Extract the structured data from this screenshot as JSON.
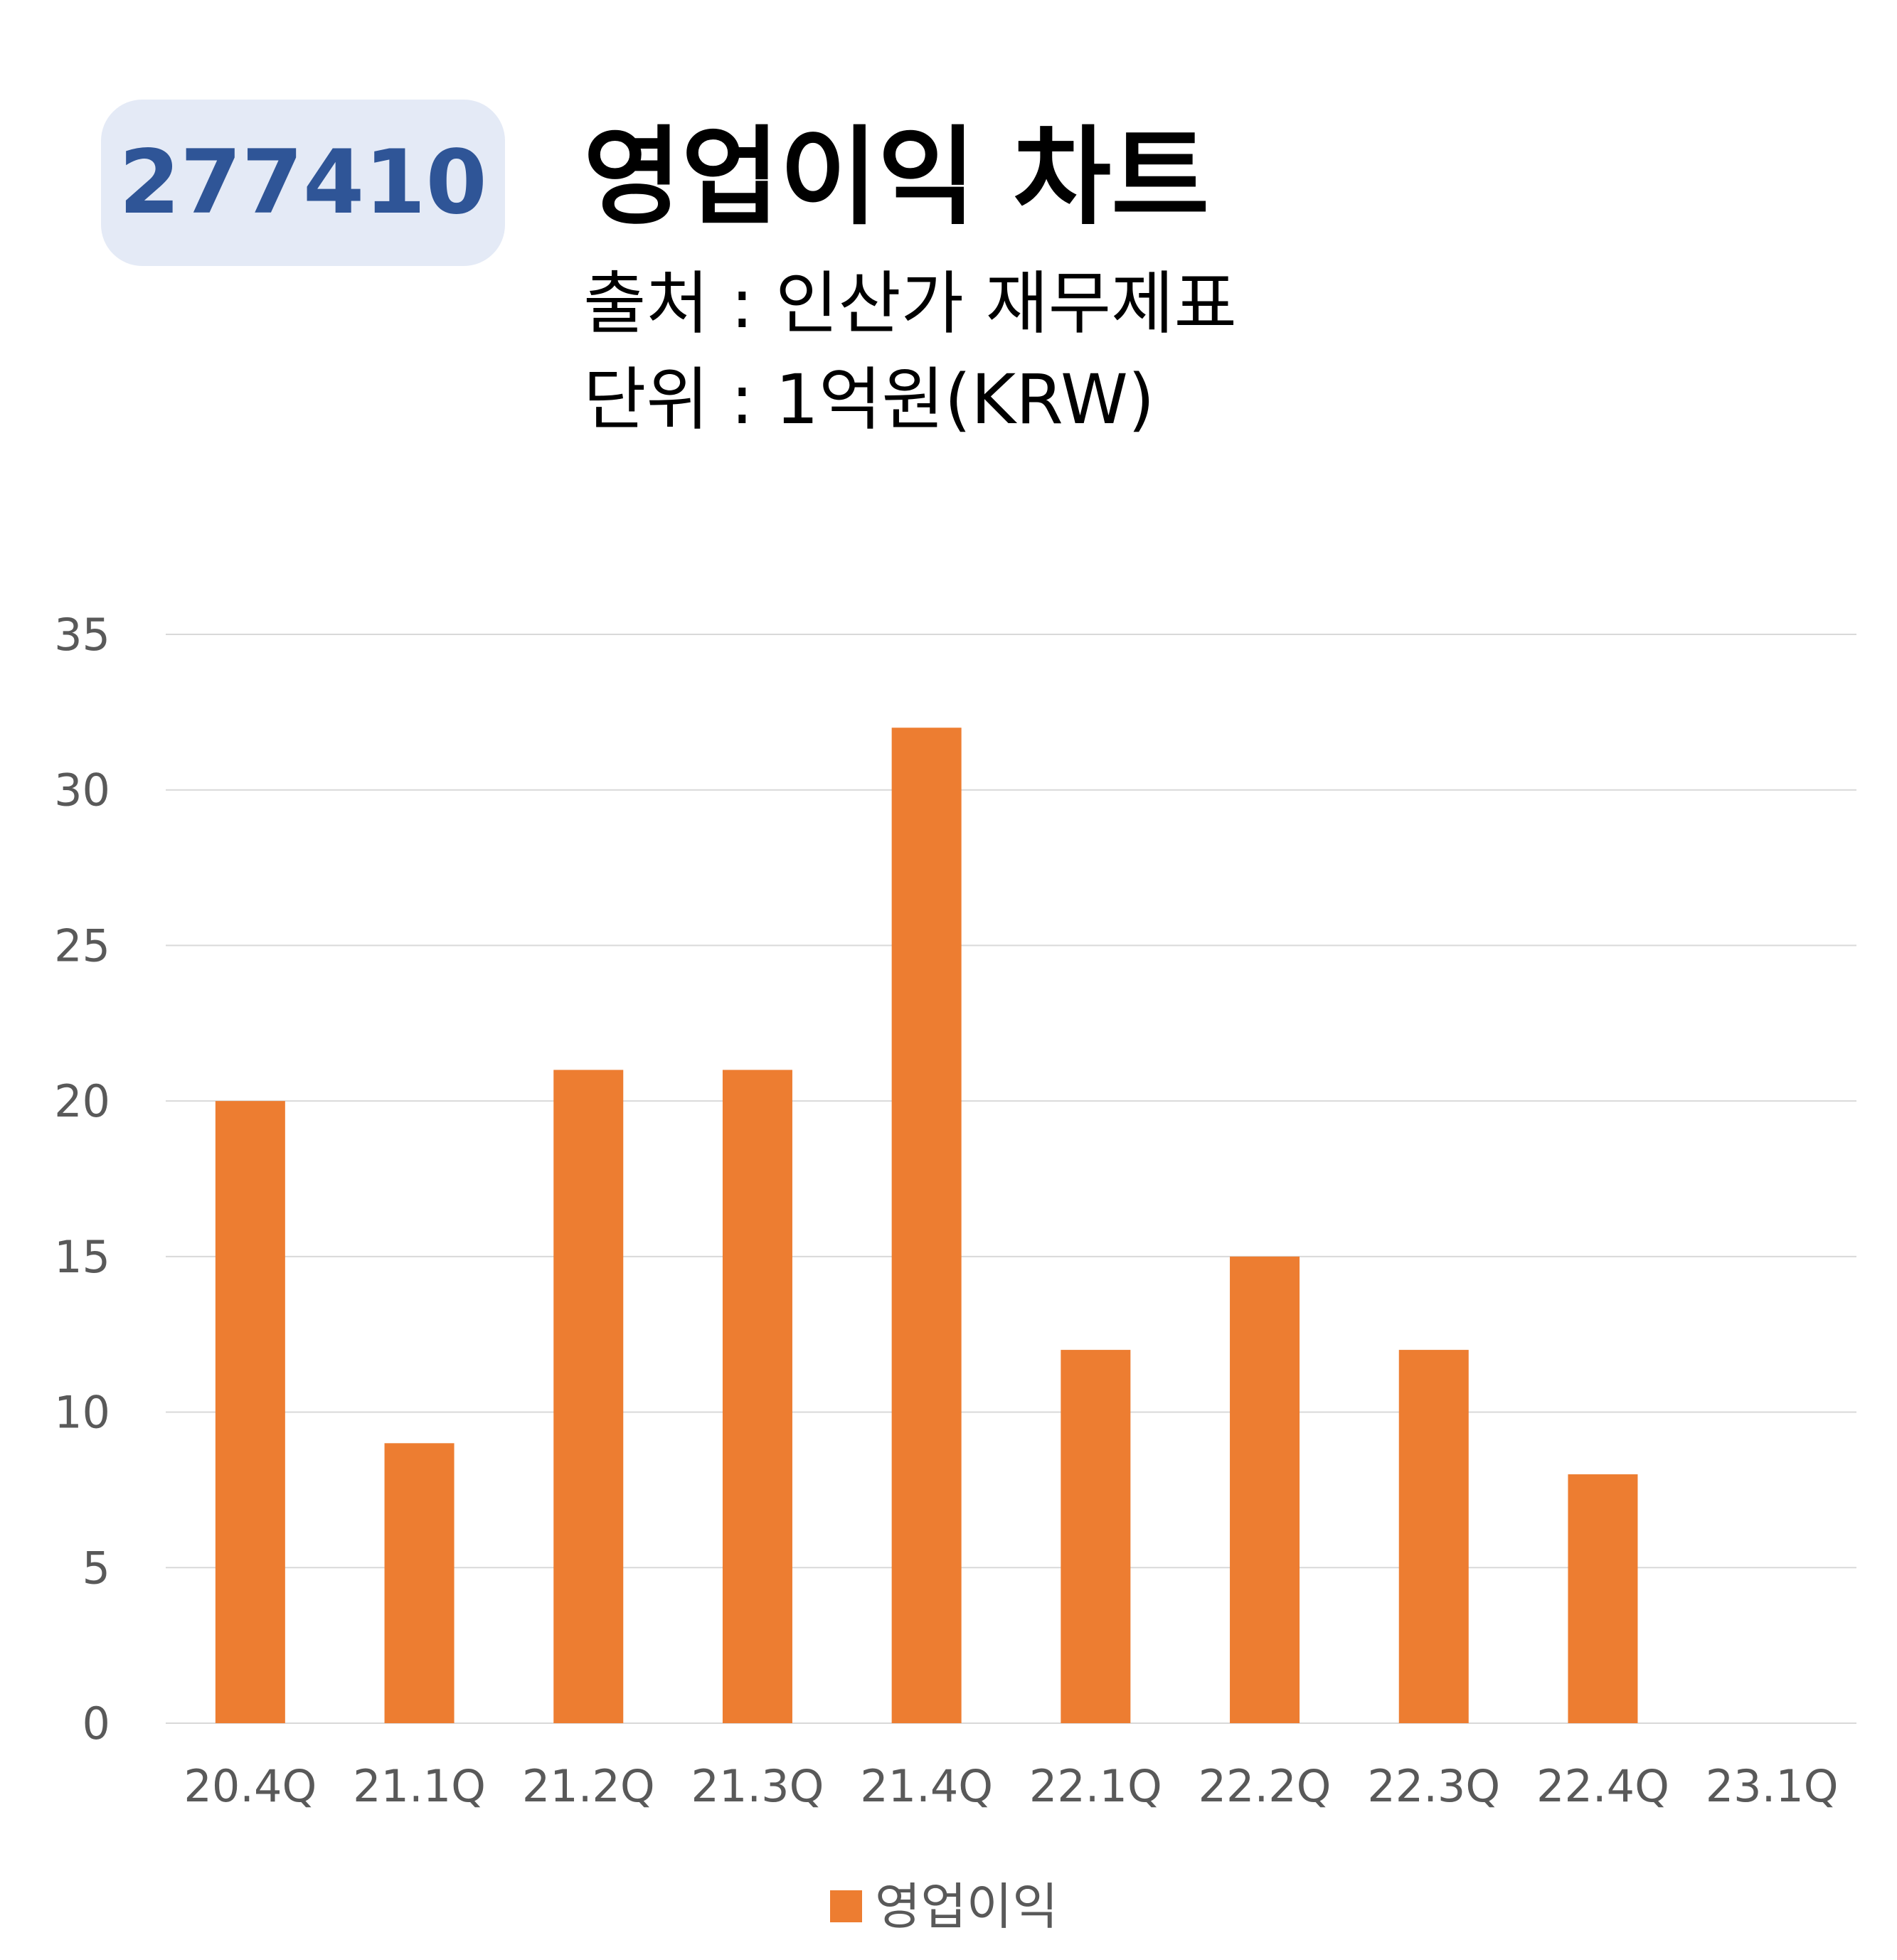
{
  "header": {
    "code": "277410",
    "title": "영업이익 차트",
    "source": "출처 : 인산가 재무제표",
    "unit": "단위 : 1억원(KRW)"
  },
  "colors": {
    "bar": "#ed7d31",
    "badge_bg": "#e4eaf6",
    "badge_text": "#2f5597",
    "grid": "#d9d9d9",
    "axis_text": "#595959"
  },
  "chart_data": {
    "type": "bar",
    "categories": [
      "20.4Q",
      "21.1Q",
      "21.2Q",
      "21.3Q",
      "21.4Q",
      "22.1Q",
      "22.2Q",
      "22.3Q",
      "22.4Q",
      "23.1Q"
    ],
    "series": [
      {
        "name": "영업이익",
        "values": [
          20,
          9,
          21,
          21,
          32,
          12,
          15,
          12,
          8,
          null
        ]
      }
    ],
    "ylim": [
      0,
      35
    ],
    "yticks": [
      0,
      5,
      10,
      15,
      20,
      25,
      30,
      35
    ],
    "grid": true,
    "legend": "bottom"
  }
}
